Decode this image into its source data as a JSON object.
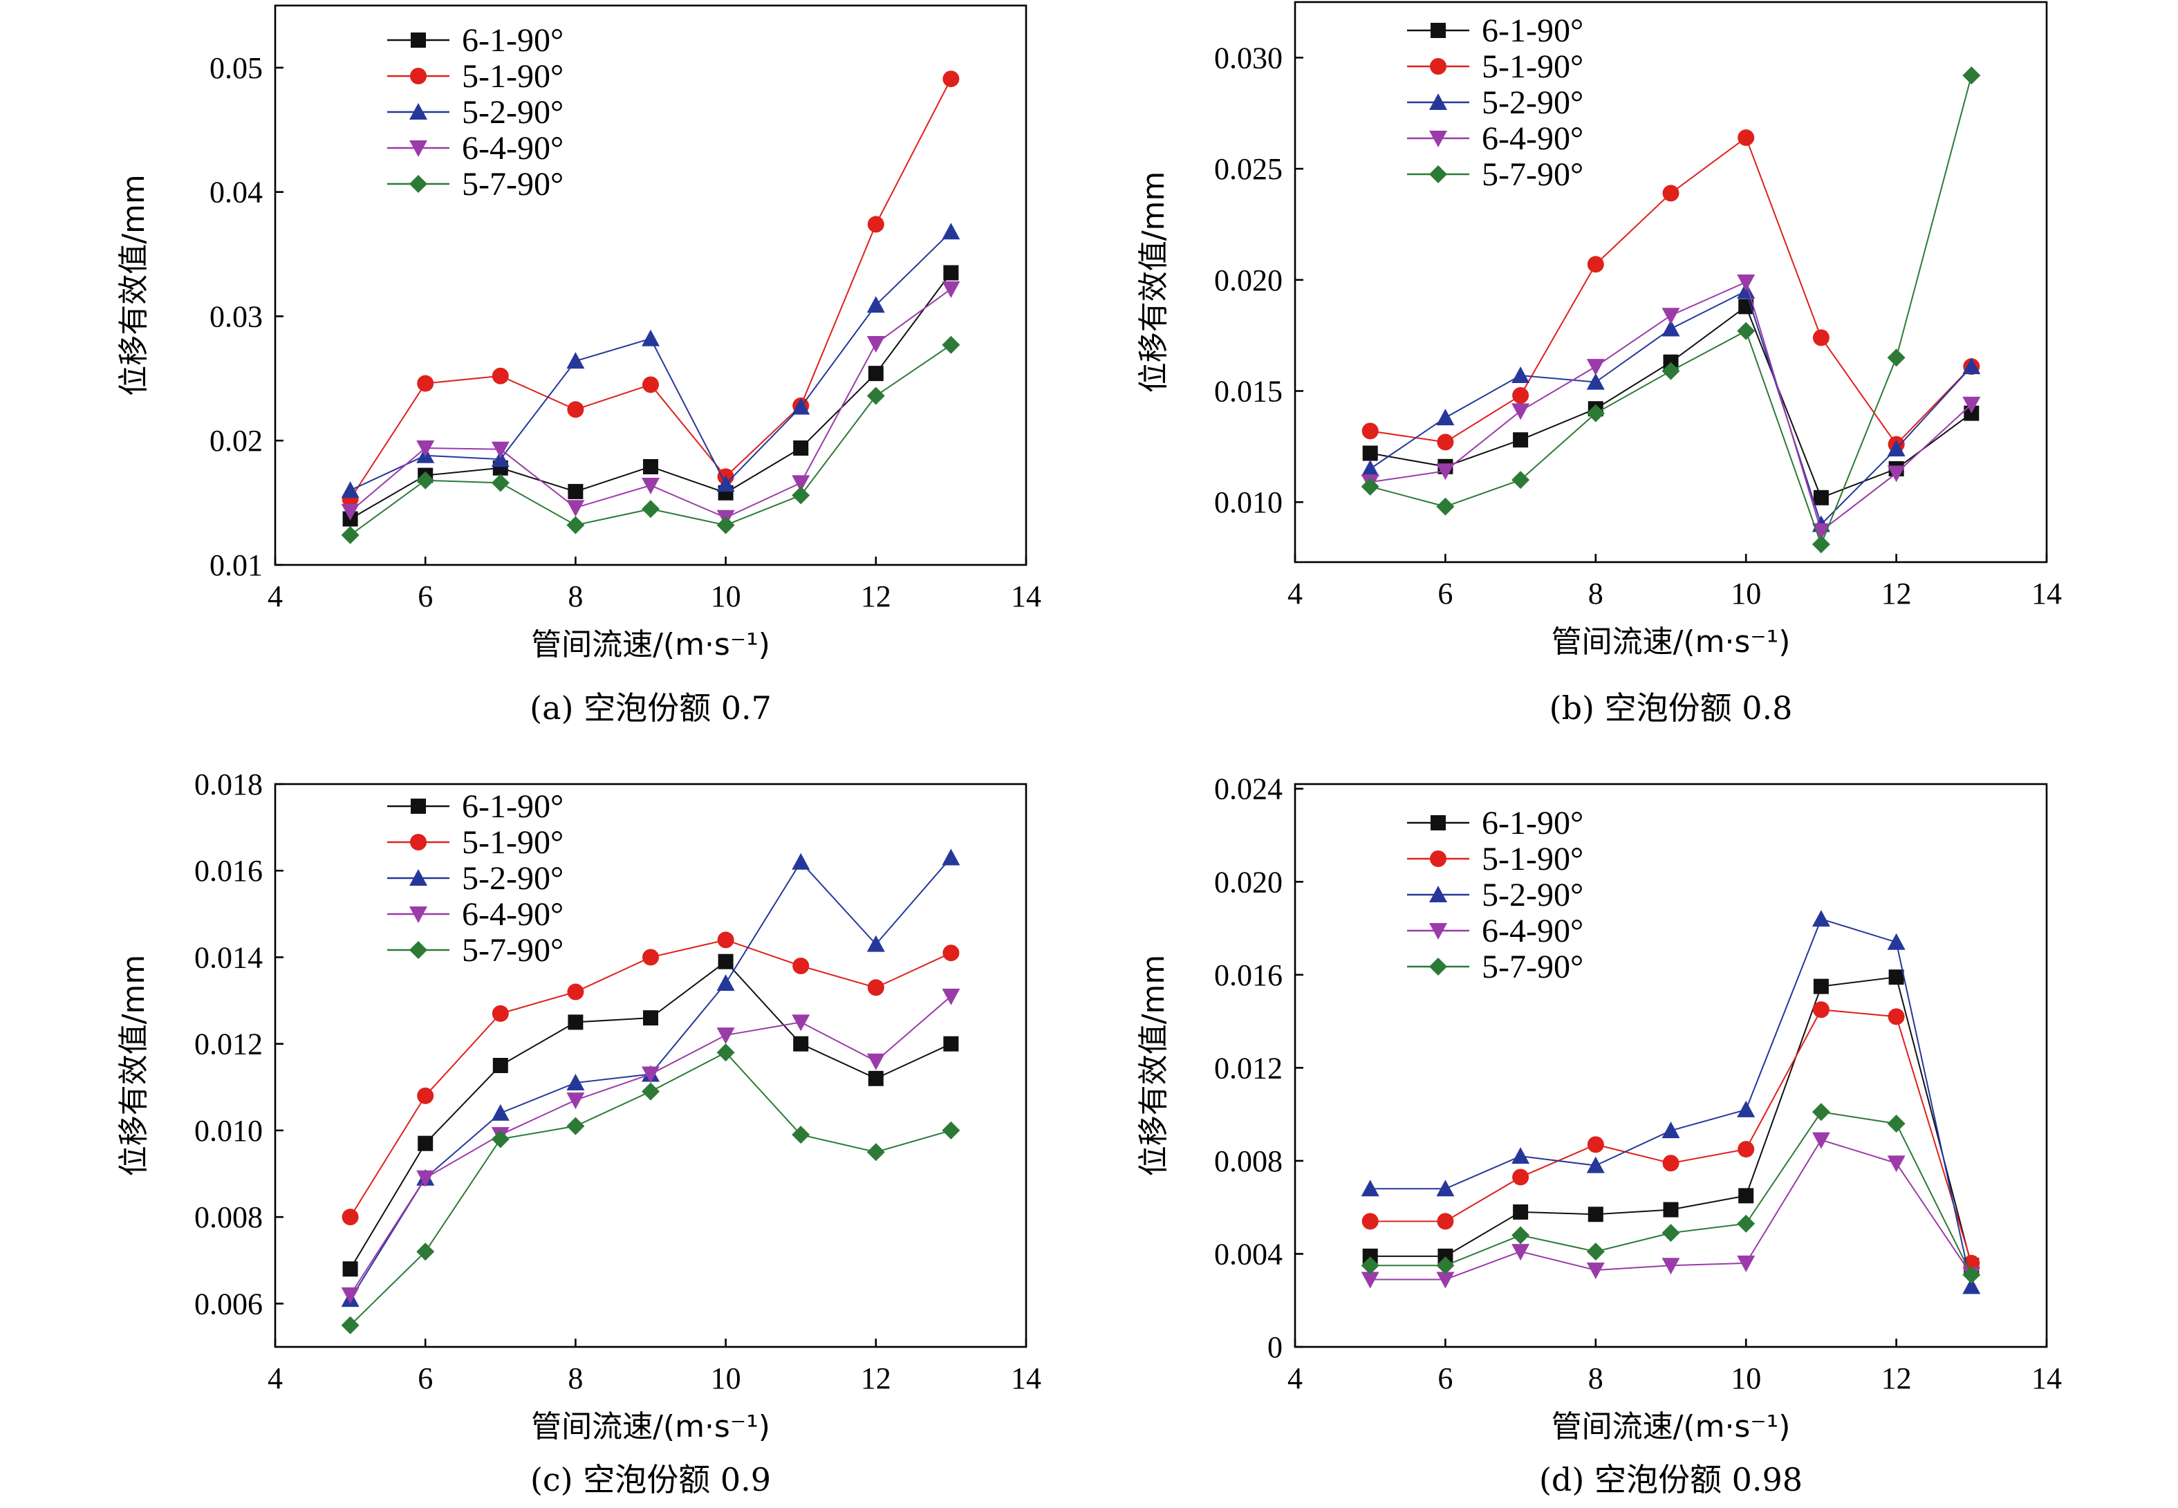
{
  "colors": {
    "6-1-90°": "#111111",
    "5-1-90°": "#e0201b",
    "5-2-90°": "#25389a",
    "6-4-90°": "#9b3ba9",
    "5-7-90°": "#2c7a36"
  },
  "markers": {
    "6-1-90°": "square",
    "5-1-90°": "circle",
    "5-2-90°": "triangle-up",
    "6-4-90°": "triangle-down",
    "5-7-90°": "diamond"
  },
  "chart_data": [
    {
      "type": "line",
      "caption": "(a) 空泡份额 0.7",
      "xlabel": "管间流速/(m·s⁻¹)",
      "ylabel": "位移有效值/mm",
      "xlim": [
        4,
        14
      ],
      "ylim": [
        0.01,
        0.055
      ],
      "xticks": [
        4,
        6,
        8,
        10,
        12,
        14
      ],
      "yticks": [
        "0.01",
        "0.02",
        "0.03",
        "0.04",
        "0.05"
      ],
      "x": [
        5,
        6,
        7,
        8,
        9,
        10,
        11,
        12,
        13
      ],
      "series": [
        {
          "name": "6-1-90°",
          "values": [
            0.0137,
            0.0172,
            0.0178,
            0.0159,
            0.0179,
            0.0158,
            0.0194,
            0.0254,
            0.0335
          ]
        },
        {
          "name": "5-1-90°",
          "values": [
            0.0153,
            0.0246,
            0.0252,
            0.0225,
            0.0245,
            0.0171,
            0.0228,
            0.0374,
            0.0491
          ]
        },
        {
          "name": "5-2-90°",
          "values": [
            0.016,
            0.0188,
            0.0185,
            0.0264,
            0.0282,
            0.0165,
            0.0227,
            0.0309,
            0.0368
          ]
        },
        {
          "name": "6-4-90°",
          "values": [
            0.0143,
            0.0194,
            0.0193,
            0.0146,
            0.0164,
            0.0138,
            0.0166,
            0.0278,
            0.0322
          ]
        },
        {
          "name": "5-7-90°",
          "values": [
            0.0124,
            0.0168,
            0.0166,
            0.0132,
            0.0145,
            0.0132,
            0.0156,
            0.0236,
            0.0277
          ]
        }
      ]
    },
    {
      "type": "line",
      "caption": "(b) 空泡份额 0.8",
      "xlabel": "管间流速/(m·s⁻¹)",
      "ylabel": "位移有效值/mm",
      "xlim": [
        4,
        14
      ],
      "ylim": [
        0.0073,
        0.0325
      ],
      "xticks": [
        4,
        6,
        8,
        10,
        12,
        14
      ],
      "yticks": [
        "0.010",
        "0.015",
        "0.020",
        "0.025",
        "0.030"
      ],
      "x": [
        5,
        6,
        7,
        8,
        9,
        10,
        11,
        12,
        13
      ],
      "series": [
        {
          "name": "6-1-90°",
          "values": [
            0.0122,
            0.0116,
            0.0128,
            0.0142,
            0.0163,
            0.0188,
            0.0102,
            0.0115,
            0.014
          ]
        },
        {
          "name": "5-1-90°",
          "values": [
            0.0132,
            0.0127,
            0.0148,
            0.0207,
            0.0239,
            0.0264,
            0.0174,
            0.0126,
            0.0161
          ]
        },
        {
          "name": "5-2-90°",
          "values": [
            0.0115,
            0.0138,
            0.0157,
            0.0154,
            0.0178,
            0.0195,
            0.009,
            0.0124,
            0.0161
          ]
        },
        {
          "name": "6-4-90°",
          "values": [
            0.0109,
            0.0114,
            0.0141,
            0.0161,
            0.0184,
            0.0199,
            0.0087,
            0.0113,
            0.0144
          ]
        },
        {
          "name": "5-7-90°",
          "values": [
            0.0107,
            0.0098,
            0.011,
            0.014,
            0.0159,
            0.0177,
            0.0081,
            0.0165,
            0.0292
          ]
        }
      ]
    },
    {
      "type": "line",
      "caption": "(c) 空泡份额 0.9",
      "xlabel": "管间流速/(m·s⁻¹)",
      "ylabel": "位移有效值/mm",
      "xlim": [
        4,
        14
      ],
      "ylim": [
        0.005,
        0.018
      ],
      "xticks": [
        4,
        6,
        8,
        10,
        12,
        14
      ],
      "yticks": [
        "0.006",
        "0.008",
        "0.010",
        "0.012",
        "0.014",
        "0.016",
        "0.018"
      ],
      "x": [
        5,
        6,
        7,
        8,
        9,
        10,
        11,
        12,
        13
      ],
      "series": [
        {
          "name": "6-1-90°",
          "values": [
            0.0068,
            0.0097,
            0.0115,
            0.0125,
            0.0126,
            0.0139,
            0.012,
            0.0112,
            0.012
          ]
        },
        {
          "name": "5-1-90°",
          "values": [
            0.008,
            0.0108,
            0.0127,
            0.0132,
            0.014,
            0.0144,
            0.0138,
            0.0133,
            0.0141
          ]
        },
        {
          "name": "5-2-90°",
          "values": [
            0.0061,
            0.0089,
            0.0104,
            0.0111,
            0.0113,
            0.0134,
            0.0162,
            0.0143,
            0.0163
          ]
        },
        {
          "name": "6-4-90°",
          "values": [
            0.0062,
            0.0089,
            0.0099,
            0.0107,
            0.0113,
            0.0122,
            0.0125,
            0.0116,
            0.0131
          ]
        },
        {
          "name": "5-7-90°",
          "values": [
            0.0055,
            0.0072,
            0.0098,
            0.0101,
            0.0109,
            0.0118,
            0.0099,
            0.0095,
            0.01
          ]
        }
      ]
    },
    {
      "type": "line",
      "caption": "(d) 空泡份额 0.98",
      "xlabel": "管间流速/(m·s⁻¹)",
      "ylabel": "位移有效值/mm",
      "xlim": [
        4,
        14
      ],
      "ylim": [
        0,
        0.0242
      ],
      "xticks": [
        4,
        6,
        8,
        10,
        12,
        14
      ],
      "yticks": [
        "0",
        "0.004",
        "0.008",
        "0.012",
        "0.016",
        "0.020",
        "0.024"
      ],
      "x": [
        5,
        6,
        7,
        8,
        9,
        10,
        11,
        12,
        13
      ],
      "series": [
        {
          "name": "6-1-90°",
          "values": [
            0.0039,
            0.0039,
            0.0058,
            0.0057,
            0.0059,
            0.0065,
            0.0155,
            0.0159,
            0.0035
          ]
        },
        {
          "name": "5-1-90°",
          "values": [
            0.0054,
            0.0054,
            0.0073,
            0.0087,
            0.0079,
            0.0085,
            0.0145,
            0.0142,
            0.0036
          ]
        },
        {
          "name": "5-2-90°",
          "values": [
            0.0068,
            0.0068,
            0.0082,
            0.0078,
            0.0093,
            0.0102,
            0.0184,
            0.0174,
            0.0026
          ]
        },
        {
          "name": "6-4-90°",
          "values": [
            0.0029,
            0.0029,
            0.0041,
            0.0033,
            0.0035,
            0.0036,
            0.0089,
            0.0079,
            0.0031
          ]
        },
        {
          "name": "5-7-90°",
          "values": [
            0.0035,
            0.0035,
            0.0048,
            0.0041,
            0.0049,
            0.0053,
            0.0101,
            0.0096,
            0.0031
          ]
        }
      ]
    }
  ]
}
